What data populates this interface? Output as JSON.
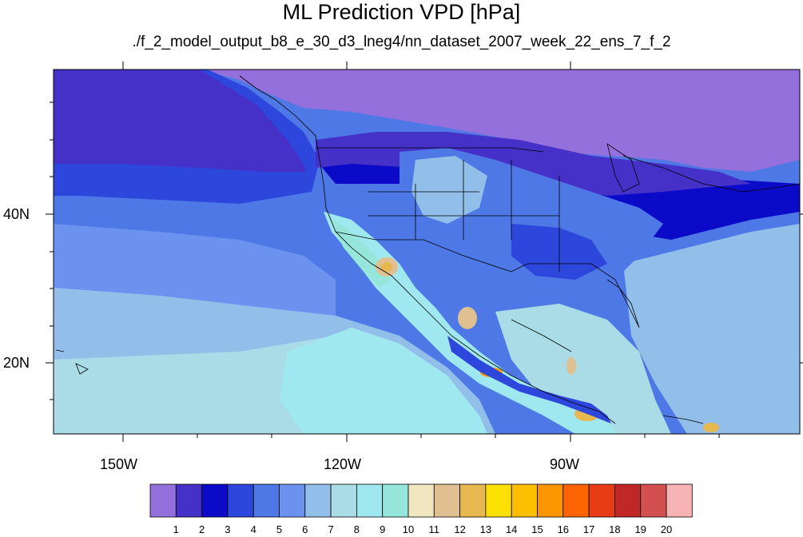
{
  "map": {
    "title": "ML Prediction VPD [hPa]",
    "subtitle": "./f_2_model_output_b8_e_30_d3_lneg4/nn_dataset_2007_week_22_ens_7_f_2",
    "x_axis_labels": [
      "150W",
      "120W",
      "90W"
    ],
    "y_axis_labels": [
      "40N",
      "20N"
    ],
    "region": "North America and adjacent Pacific / Atlantic",
    "colorbar": {
      "labels": [
        "1",
        "2",
        "3",
        "4",
        "5",
        "6",
        "7",
        "8",
        "9",
        "10",
        "11",
        "12",
        "13",
        "14",
        "15",
        "16",
        "17",
        "18",
        "19",
        "20"
      ],
      "colors": [
        "#9370db",
        "#4631c8",
        "#0a0ac8",
        "#2d46dc",
        "#4d78e6",
        "#6b92ee",
        "#92bfea",
        "#a9dce6",
        "#a0e8f0",
        "#96e6dc",
        "#f0e6c0",
        "#e0c090",
        "#e8b850",
        "#fce000",
        "#fcc000",
        "#fc9600",
        "#fc6400",
        "#e83c14",
        "#c02828",
        "#d25050",
        "#f8b4b4"
      ]
    }
  }
}
